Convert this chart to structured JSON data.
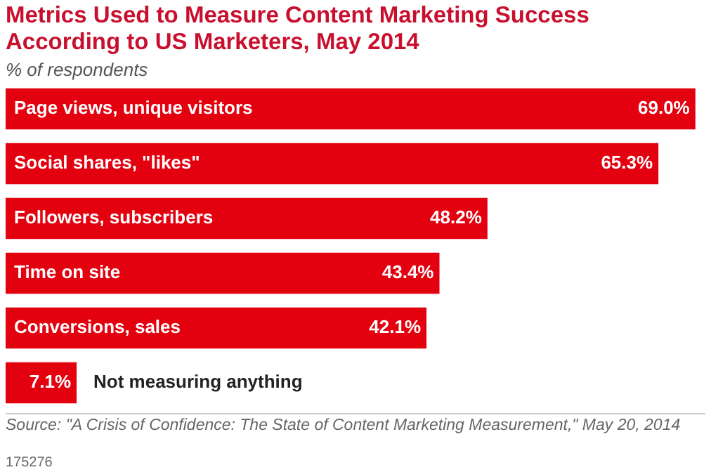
{
  "chart_data": {
    "type": "bar",
    "orientation": "horizontal",
    "title": "Metrics Used to Measure Content Marketing Success According to US Marketers, May 2014",
    "subtitle": "% of respondents",
    "categories": [
      "Page views, unique visitors",
      "Social shares, \"likes\"",
      "Followers, subscribers",
      "Time on site",
      "Conversions, sales",
      "Not measuring anything"
    ],
    "values": [
      69.0,
      65.3,
      48.2,
      43.4,
      42.1,
      7.1
    ],
    "color": "#e3000f",
    "value_labels": [
      "69.0%",
      "65.3%",
      "48.2%",
      "43.4%",
      "42.1%",
      "7.1%"
    ],
    "annotations": [
      "Source: \"A Crisis of Confidence: The State of Content Marketing Measurement,\" May 20, 2014",
      "175276"
    ]
  }
}
